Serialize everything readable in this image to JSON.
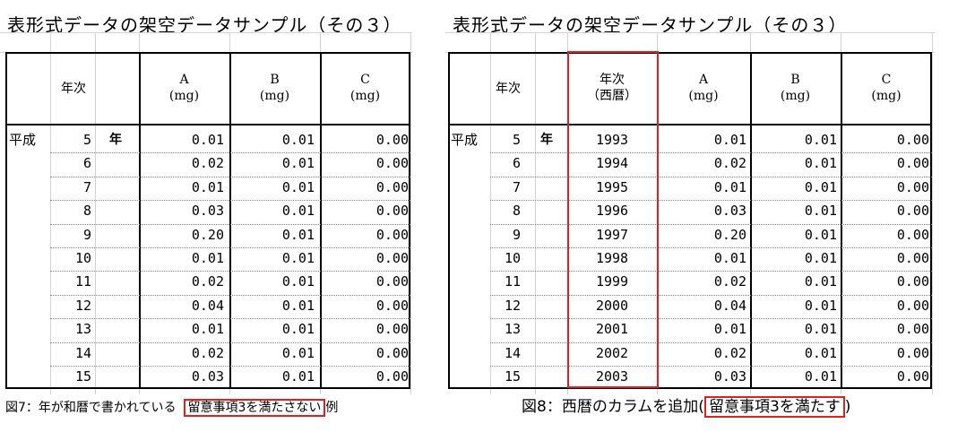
{
  "left": {
    "title": "表形式データの架空データサンプル（その３）",
    "headers": {
      "year": "年次",
      "a_name": "A",
      "a_unit": "(mg)",
      "b_name": "B",
      "b_unit": "(mg)",
      "c_name": "C",
      "c_unit": "(mg)"
    },
    "era": "平成",
    "year_suffix": "年",
    "rows": [
      {
        "year": "5",
        "a": "0.01",
        "b": "0.01",
        "c": "0.00"
      },
      {
        "year": "6",
        "a": "0.02",
        "b": "0.01",
        "c": "0.00"
      },
      {
        "year": "7",
        "a": "0.01",
        "b": "0.01",
        "c": "0.00"
      },
      {
        "year": "8",
        "a": "0.03",
        "b": "0.01",
        "c": "0.00"
      },
      {
        "year": "9",
        "a": "0.20",
        "b": "0.01",
        "c": "0.00"
      },
      {
        "year": "10",
        "a": "0.01",
        "b": "0.01",
        "c": "0.00"
      },
      {
        "year": "11",
        "a": "0.02",
        "b": "0.01",
        "c": "0.00"
      },
      {
        "year": "12",
        "a": "0.04",
        "b": "0.01",
        "c": "0.00"
      },
      {
        "year": "13",
        "a": "0.01",
        "b": "0.01",
        "c": "0.00"
      },
      {
        "year": "14",
        "a": "0.02",
        "b": "0.01",
        "c": "0.00"
      },
      {
        "year": "15",
        "a": "0.03",
        "b": "0.01",
        "c": "0.00"
      }
    ],
    "caption_prefix": "図7：年が和暦で書かれている",
    "caption_boxed": "留意事項3を満たさない",
    "caption_suffix": "例"
  },
  "right": {
    "title": "表形式データの架空データサンプル（その３）",
    "headers": {
      "year": "年次",
      "western_1": "年次",
      "western_2": "（西暦）",
      "a_name": "A",
      "a_unit": "(mg)",
      "b_name": "B",
      "b_unit": "(mg)",
      "c_name": "C",
      "c_unit": "(mg)"
    },
    "era": "平成",
    "year_suffix": "年",
    "rows": [
      {
        "year": "5",
        "western": "1993",
        "a": "0.01",
        "b": "0.01",
        "c": "0.00"
      },
      {
        "year": "6",
        "western": "1994",
        "a": "0.02",
        "b": "0.01",
        "c": "0.00"
      },
      {
        "year": "7",
        "western": "1995",
        "a": "0.01",
        "b": "0.01",
        "c": "0.00"
      },
      {
        "year": "8",
        "western": "1996",
        "a": "0.03",
        "b": "0.01",
        "c": "0.00"
      },
      {
        "year": "9",
        "western": "1997",
        "a": "0.20",
        "b": "0.01",
        "c": "0.00"
      },
      {
        "year": "10",
        "western": "1998",
        "a": "0.01",
        "b": "0.01",
        "c": "0.00"
      },
      {
        "year": "11",
        "western": "1999",
        "a": "0.02",
        "b": "0.01",
        "c": "0.00"
      },
      {
        "year": "12",
        "western": "2000",
        "a": "0.04",
        "b": "0.01",
        "c": "0.00"
      },
      {
        "year": "13",
        "western": "2001",
        "a": "0.01",
        "b": "0.01",
        "c": "0.00"
      },
      {
        "year": "14",
        "western": "2002",
        "a": "0.02",
        "b": "0.01",
        "c": "0.00"
      },
      {
        "year": "15",
        "western": "2003",
        "a": "0.03",
        "b": "0.01",
        "c": "0.00"
      }
    ],
    "caption_prefix": "図8：西暦のカラムを追加(",
    "caption_boxed": "留意事項3を満たす",
    "caption_suffix": ")"
  }
}
